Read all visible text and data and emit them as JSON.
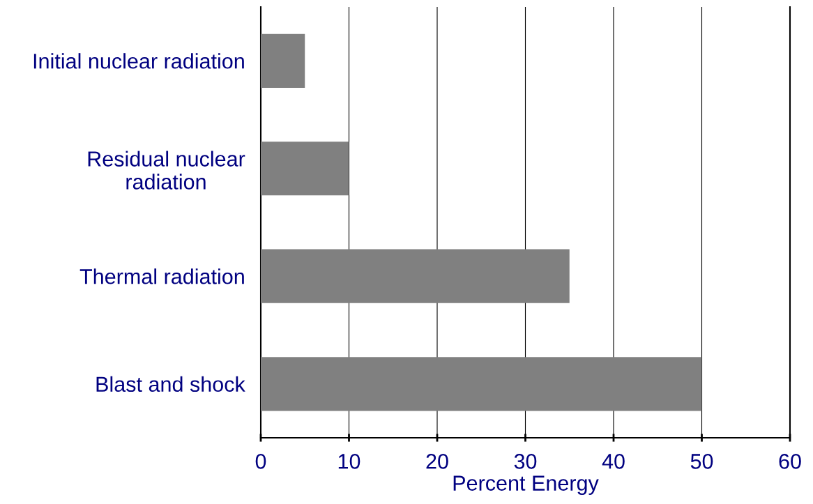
{
  "chart_data": {
    "type": "bar",
    "orientation": "horizontal",
    "xlabel": "Percent Energy",
    "categories": [
      "Initial nuclear radiation",
      "Residual nuclear\nradiation",
      "Thermal radiation",
      "Blast and shock"
    ],
    "values": [
      5,
      10,
      35,
      50
    ],
    "color": "#808080",
    "xlim": [
      0,
      60
    ],
    "xticks": [
      0,
      10,
      20,
      30,
      40,
      50,
      60
    ],
    "grid": "x"
  }
}
